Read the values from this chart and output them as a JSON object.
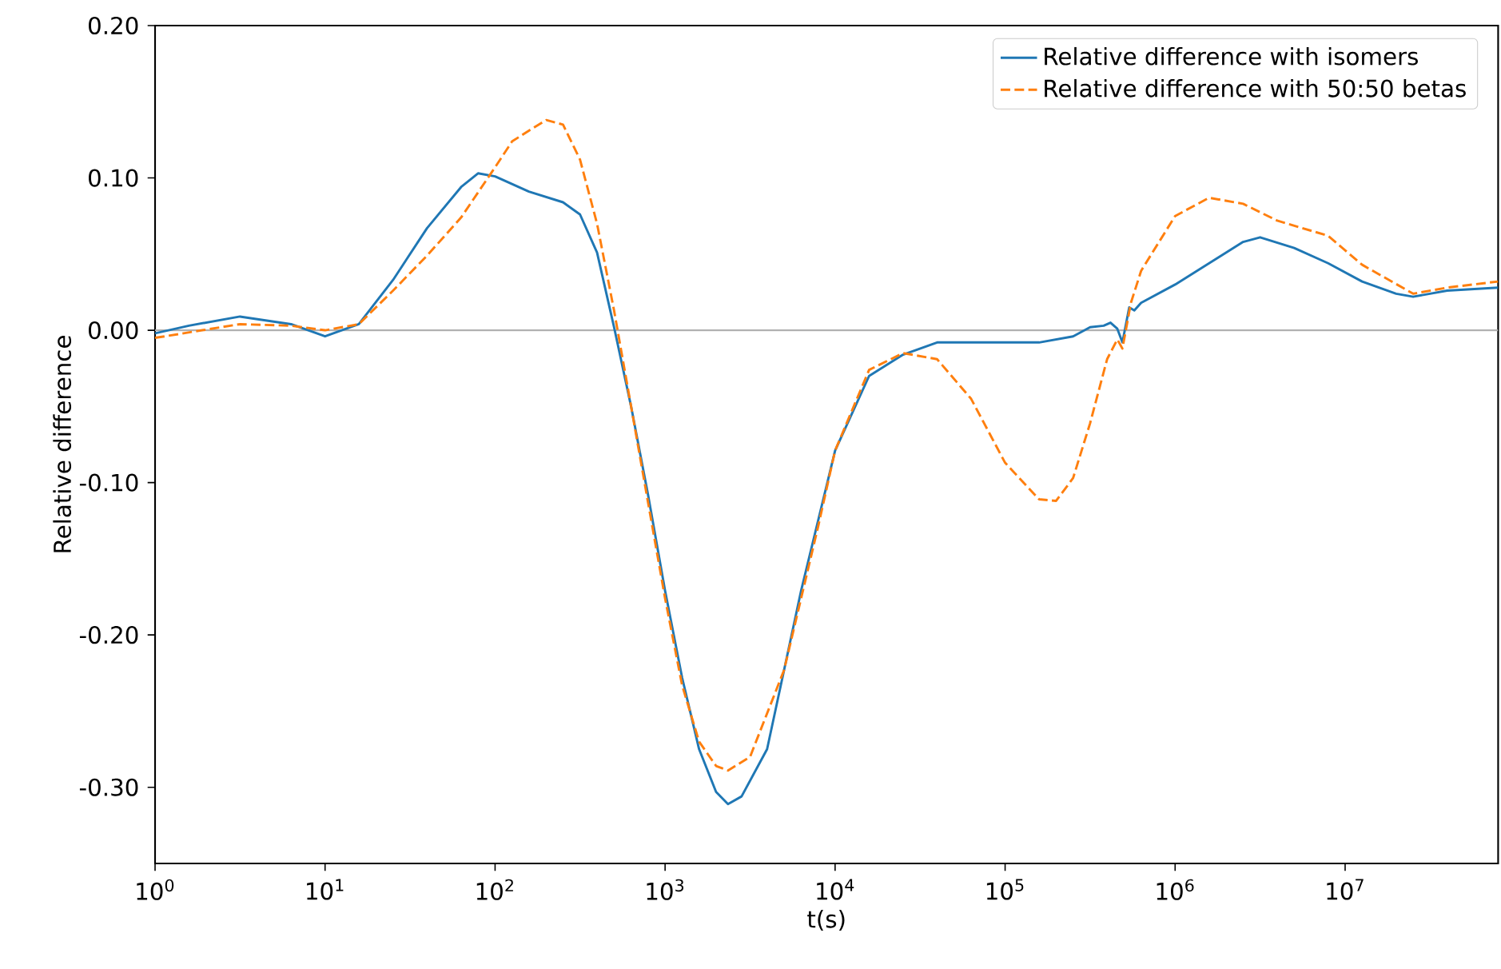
{
  "chart_data": {
    "type": "line",
    "xlabel": "t(s)",
    "ylabel": "Relative difference",
    "log": "x",
    "grid": false,
    "legend": "top right",
    "marker": "none",
    "xlim": [
      1,
      79432823
    ],
    "ylim": [
      -0.35,
      0.2
    ],
    "xticks": [
      {
        "value": 1,
        "label": "10$^{0}$"
      },
      {
        "value": 10,
        "label": "10$^{1}$"
      },
      {
        "value": 100,
        "label": "10$^{2}$"
      },
      {
        "value": 1000,
        "label": "10$^{3}$"
      },
      {
        "value": 10000,
        "label": "10$^{4}$"
      },
      {
        "value": 100000,
        "label": "10$^{5}$"
      },
      {
        "value": 1000000,
        "label": "10$^{6}$"
      },
      {
        "value": 10000000,
        "label": "10$^{7}$"
      }
    ],
    "yticks": [
      {
        "value": -0.3,
        "label": "-0.30"
      },
      {
        "value": -0.2,
        "label": "-0.20"
      },
      {
        "value": -0.1,
        "label": "-0.10"
      },
      {
        "value": 0,
        "label": "0.00"
      },
      {
        "value": 0.1,
        "label": "0.10"
      },
      {
        "value": 0.2,
        "label": "0.20"
      }
    ],
    "ref_lines": [
      {
        "axis": "y",
        "value": 0,
        "color": "#b0b0b0"
      }
    ],
    "series": [
      {
        "name": "Relative difference with isomers",
        "color": "#1f77b4",
        "line_style": "solid",
        "x": [
          1,
          1.58,
          3.16,
          6.31,
          10,
          15.8,
          25.1,
          39.8,
          63.1,
          79.4,
          100,
          158,
          251,
          316,
          398,
          501,
          631,
          794,
          1000,
          1259,
          1585,
          1995,
          2344,
          2818,
          3981,
          6310,
          10000,
          15849,
          25119,
          39811,
          100000,
          158489,
          251189,
          316228,
          380189,
          416869,
          457088,
          489779,
          537032,
          575440,
          630957,
          1000000,
          1584893,
          2511886,
          3162278,
          5011872,
          7943282,
          12589254,
          19952623,
          25118864,
          39810717,
          79432823
        ],
        "values": [
          -0.002,
          0.003,
          0.009,
          0.004,
          -0.004,
          0.004,
          0.033,
          0.067,
          0.094,
          0.103,
          0.101,
          0.091,
          0.084,
          0.076,
          0.051,
          0.002,
          -0.05,
          -0.108,
          -0.171,
          -0.228,
          -0.275,
          -0.303,
          -0.311,
          -0.306,
          -0.275,
          -0.171,
          -0.079,
          -0.03,
          -0.016,
          -0.008,
          -0.008,
          -0.008,
          -0.004,
          0.002,
          0.003,
          0.005,
          0.001,
          -0.008,
          0.015,
          0.013,
          0.018,
          0.03,
          0.044,
          0.058,
          0.061,
          0.054,
          0.044,
          0.032,
          0.024,
          0.022,
          0.026,
          0.028
        ]
      },
      {
        "name": "Relative difference with 50:50 betas",
        "color": "#ff7f0e",
        "line_style": "dashed",
        "x": [
          1,
          3.16,
          6.31,
          10,
          15.8,
          25.1,
          39.8,
          63.1,
          100,
          126,
          158,
          200,
          251,
          316,
          398,
          501,
          631,
          794,
          1000,
          1259,
          1585,
          1995,
          2344,
          3162,
          5012,
          7943,
          10000,
          15849,
          25119,
          39811,
          63096,
          100000,
          158489,
          199526,
          251189,
          316228,
          398107,
          457088,
          489779,
          549541,
          630957,
          1000000,
          1584893,
          2511886,
          3981072,
          7943282,
          12589254,
          25118864,
          39810717,
          79432823
        ],
        "values": [
          -0.005,
          0.004,
          0.003,
          0.0,
          0.004,
          0.026,
          0.049,
          0.074,
          0.107,
          0.124,
          0.131,
          0.138,
          0.135,
          0.112,
          0.07,
          0.013,
          -0.05,
          -0.113,
          -0.176,
          -0.233,
          -0.27,
          -0.286,
          -0.289,
          -0.28,
          -0.223,
          -0.129,
          -0.079,
          -0.026,
          -0.015,
          -0.019,
          -0.045,
          -0.087,
          -0.111,
          -0.112,
          -0.097,
          -0.061,
          -0.019,
          -0.006,
          -0.012,
          0.018,
          0.039,
          0.075,
          0.087,
          0.083,
          0.072,
          0.062,
          0.043,
          0.024,
          0.028,
          0.032
        ]
      }
    ]
  }
}
